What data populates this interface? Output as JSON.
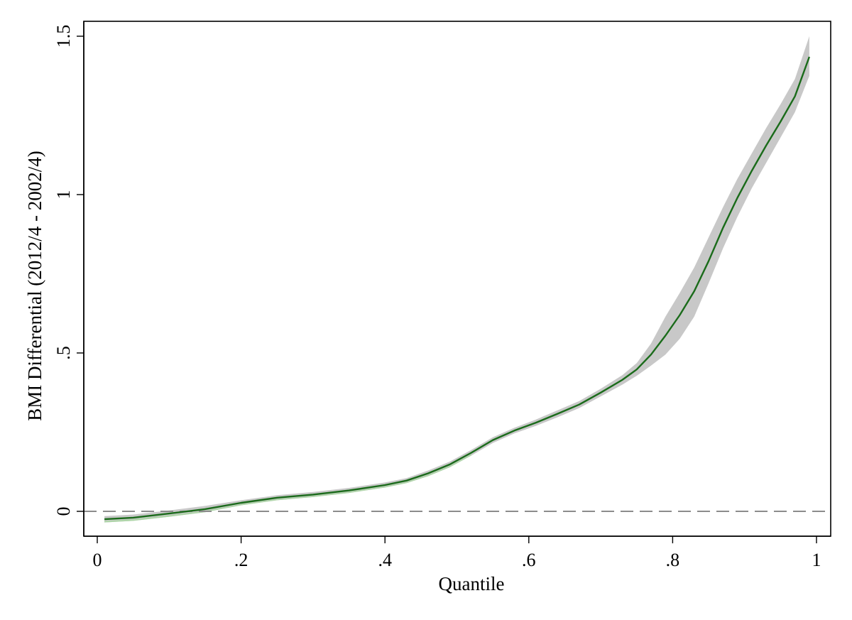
{
  "chart_data": {
    "type": "line",
    "xlabel": "Quantile",
    "ylabel": "BMI Differential (2012/4 - 2002/4)",
    "xlim": [
      0,
      1
    ],
    "ylim": [
      -0.08,
      1.55
    ],
    "xticks": [
      {
        "value": 0,
        "label": "0"
      },
      {
        "value": 0.2,
        "label": ".2"
      },
      {
        "value": 0.4,
        "label": ".4"
      },
      {
        "value": 0.6,
        "label": ".6"
      },
      {
        "value": 0.8,
        "label": ".8"
      },
      {
        "value": 1,
        "label": "1"
      }
    ],
    "yticks": [
      {
        "value": 0,
        "label": "0"
      },
      {
        "value": 0.5,
        "label": ".5"
      },
      {
        "value": 1,
        "label": "1"
      },
      {
        "value": 1.5,
        "label": "1.5"
      }
    ],
    "grid": false,
    "reference_line": {
      "y": 0,
      "style": "dashed",
      "color": "#8c8c8c"
    },
    "colors": {
      "line": "#1a6b1a",
      "band": "#c8c8c8",
      "band_low": "#a8d8a0"
    },
    "series": [
      {
        "x": [
          0.01,
          0.05,
          0.1,
          0.15,
          0.2,
          0.25,
          0.3,
          0.35,
          0.4,
          0.43,
          0.46,
          0.49,
          0.52,
          0.55,
          0.58,
          0.61,
          0.64,
          0.67,
          0.7,
          0.73,
          0.75,
          0.77,
          0.79,
          0.81,
          0.83,
          0.85,
          0.87,
          0.89,
          0.91,
          0.93,
          0.95,
          0.97,
          0.99
        ],
        "y": [
          -0.025,
          -0.02,
          -0.007,
          0.007,
          0.027,
          0.043,
          0.053,
          0.066,
          0.083,
          0.097,
          0.12,
          0.148,
          0.185,
          0.225,
          0.255,
          0.28,
          0.308,
          0.337,
          0.375,
          0.415,
          0.448,
          0.495,
          0.555,
          0.62,
          0.695,
          0.79,
          0.895,
          0.99,
          1.075,
          1.155,
          1.23,
          1.31,
          1.435
        ],
        "ci_lower": [
          -0.035,
          -0.03,
          -0.017,
          -0.003,
          0.019,
          0.035,
          0.045,
          0.058,
          0.075,
          0.089,
          0.111,
          0.139,
          0.176,
          0.216,
          0.246,
          0.27,
          0.297,
          0.326,
          0.363,
          0.4,
          0.428,
          0.46,
          0.495,
          0.545,
          0.615,
          0.72,
          0.83,
          0.93,
          1.02,
          1.1,
          1.18,
          1.26,
          1.375
        ],
        "ci_upper": [
          -0.015,
          -0.01,
          0.003,
          0.017,
          0.035,
          0.051,
          0.061,
          0.074,
          0.091,
          0.105,
          0.129,
          0.157,
          0.194,
          0.234,
          0.264,
          0.29,
          0.319,
          0.348,
          0.387,
          0.43,
          0.468,
          0.53,
          0.615,
          0.69,
          0.77,
          0.865,
          0.96,
          1.05,
          1.13,
          1.21,
          1.285,
          1.365,
          1.5
        ]
      }
    ]
  }
}
